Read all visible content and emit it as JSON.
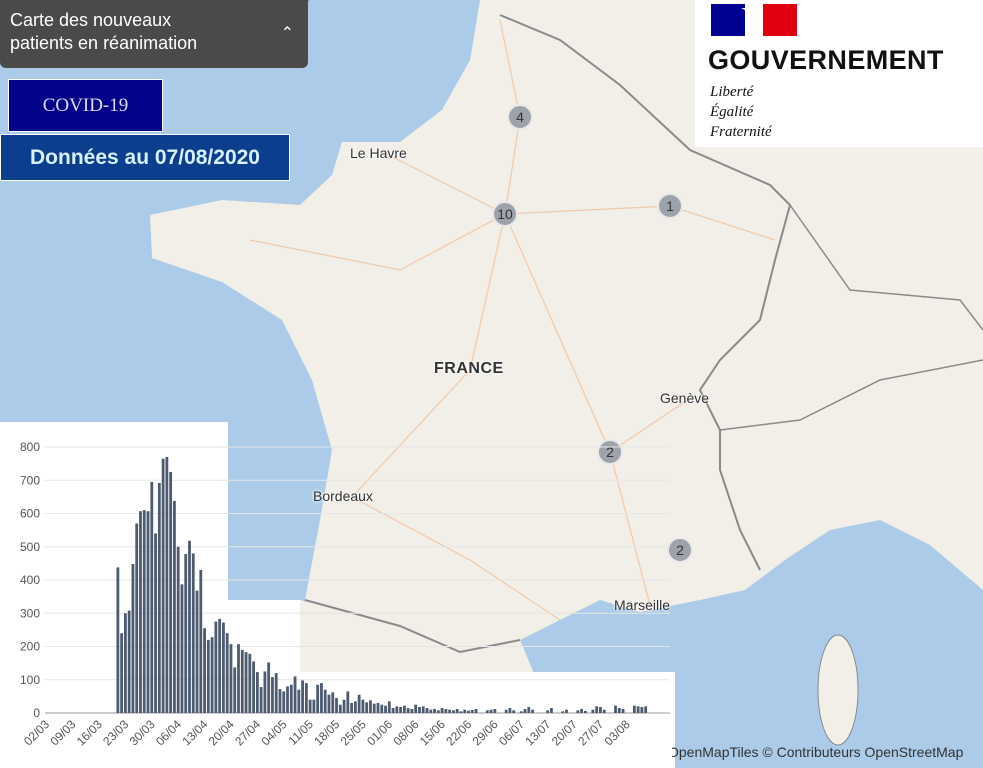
{
  "header": {
    "title_line1": "Carte des nouveaux",
    "title_line2": "patients en réanimation",
    "collapse_icon": "chevron-up-icon",
    "badge": "COVID-19",
    "date_banner": "Données au 07/08/2020"
  },
  "logo": {
    "name": "GOUVERNEMENT",
    "motto": [
      "Liberté",
      "Égalité",
      "Fraternité"
    ],
    "flag_colors": [
      "#000091",
      "#ffffff",
      "#e1000f"
    ]
  },
  "map": {
    "colors": {
      "sea": "#abcbe8",
      "land": "#f2efe9",
      "cluster": "#9ea3ab",
      "border": "#8a8a8a"
    },
    "labels": {
      "country": "FRANCE",
      "cities": [
        "Le Havre",
        "Genève",
        "Bordeaux",
        "Marseille"
      ]
    },
    "clusters": [
      "4",
      "10",
      "1",
      "2",
      "2"
    ],
    "attribution": "OpenMapTiles © Contributeurs OpenStreetMap"
  },
  "chart_data": {
    "type": "bar",
    "bar_color": "#4d5b70",
    "ylim": [
      0,
      800
    ],
    "yticks": [
      "0",
      "100",
      "200",
      "300",
      "400",
      "500",
      "600",
      "700",
      "800"
    ],
    "xticks": [
      "02/03",
      "09/03",
      "16/03",
      "23/03",
      "30/03",
      "06/04",
      "13/04",
      "20/04",
      "27/04",
      "04/05",
      "11/05",
      "18/05",
      "25/05",
      "01/06",
      "08/06",
      "15/06",
      "22/06",
      "29/06",
      "06/07",
      "13/07",
      "20/07",
      "27/07",
      "03/08"
    ],
    "grid": true,
    "x": [
      "20/03",
      "21/03",
      "22/03",
      "23/03",
      "24/03",
      "25/03",
      "26/03",
      "27/03",
      "28/03",
      "29/03",
      "30/03",
      "31/03",
      "01/04",
      "02/04",
      "03/04",
      "04/04",
      "05/04",
      "06/04",
      "07/04",
      "08/04",
      "09/04",
      "10/04",
      "11/04",
      "12/04",
      "13/04",
      "14/04",
      "15/04",
      "16/04",
      "17/04",
      "18/04",
      "19/04",
      "20/04",
      "21/04",
      "22/04",
      "23/04",
      "24/04",
      "25/04",
      "26/04",
      "27/04",
      "28/04",
      "29/04",
      "30/04",
      "01/05",
      "02/05",
      "03/05",
      "04/05",
      "05/05",
      "06/05",
      "07/05",
      "08/05",
      "09/05",
      "10/05",
      "11/05",
      "12/05",
      "13/05",
      "14/05",
      "15/05",
      "16/05",
      "17/05",
      "18/05",
      "19/05",
      "20/05",
      "21/05",
      "22/05",
      "23/05",
      "24/05",
      "25/05",
      "26/05",
      "27/05",
      "28/05",
      "29/05",
      "30/05",
      "31/05",
      "01/06",
      "02/06",
      "03/06",
      "04/06",
      "05/06",
      "06/06",
      "07/06",
      "08/06",
      "09/06",
      "10/06",
      "11/06",
      "12/06",
      "13/06",
      "14/06",
      "15/06",
      "16/06",
      "17/06",
      "18/06",
      "19/06",
      "20/06",
      "21/06",
      "22/06",
      "23/06",
      "24/06",
      "25/06",
      "26/06",
      "27/06",
      "28/06",
      "29/06",
      "30/06",
      "01/07",
      "02/07",
      "03/07",
      "04/07",
      "05/07",
      "06/07",
      "07/07",
      "08/07",
      "09/07",
      "10/07",
      "11/07",
      "12/07",
      "13/07",
      "14/07",
      "15/07",
      "16/07",
      "17/07",
      "18/07",
      "19/07",
      "20/07",
      "21/07",
      "22/07",
      "23/07",
      "24/07",
      "25/07",
      "26/07",
      "27/07",
      "28/07",
      "29/07",
      "30/07",
      "31/07",
      "01/08",
      "02/08",
      "03/08",
      "04/08",
      "05/08",
      "06/08",
      "07/08"
    ],
    "values": [
      438,
      240,
      300,
      308,
      448,
      570,
      607,
      610,
      607,
      695,
      540,
      692,
      765,
      770,
      725,
      638,
      500,
      387,
      478,
      518,
      480,
      368,
      430,
      255,
      220,
      228,
      275,
      283,
      272,
      240,
      207,
      137,
      207,
      190,
      183,
      178,
      155,
      123,
      78,
      125,
      152,
      108,
      120,
      72,
      65,
      80,
      85,
      110,
      70,
      98,
      90,
      40,
      40,
      85,
      90,
      70,
      55,
      62,
      45,
      25,
      40,
      65,
      30,
      35,
      55,
      40,
      32,
      38,
      28,
      30,
      25,
      22,
      35,
      15,
      20,
      18,
      22,
      15,
      12,
      25,
      18,
      20,
      15,
      10,
      12,
      8,
      15,
      12,
      10,
      8,
      12,
      5,
      10,
      7,
      9,
      12,
      0,
      0,
      8,
      10,
      12,
      0,
      0,
      10,
      15,
      8,
      0,
      5,
      12,
      18,
      10,
      0,
      0,
      0,
      8,
      15,
      0,
      0,
      5,
      10,
      0,
      0,
      8,
      12,
      6,
      0,
      10,
      20,
      18,
      10,
      0,
      0,
      22,
      15,
      12,
      0,
      0,
      22,
      20,
      18,
      20
    ]
  }
}
